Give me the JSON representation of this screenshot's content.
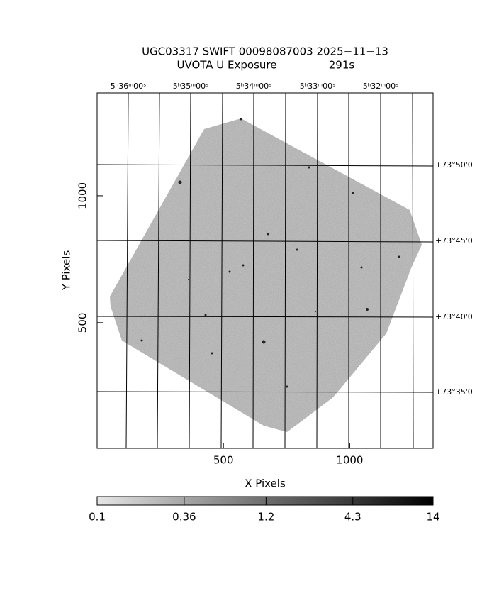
{
  "chart_data": {
    "type": "image",
    "title": "UGC03317 SWIFT 00098087003 2025−11−13",
    "subtitle": "UVOTA U Exposure",
    "exposure": "291s",
    "xlabel": "X Pixels",
    "ylabel": "Y Pixels",
    "xlim": [
      0,
      1330
    ],
    "xticks": [
      500,
      1000
    ],
    "ylim": [
      5,
      1405
    ],
    "yticks": [
      500,
      1000
    ],
    "ra_labels": [
      "5ʰ36ᵐ00ˢ",
      "5ʰ35ᵐ00ˢ",
      "5ʰ34ᵐ00ˢ",
      "5ʰ33ᵐ00ˢ",
      "5ʰ32ᵐ00ˢ"
    ],
    "dec_labels": [
      "+73°50'0",
      "+73°45'0",
      "+73°40'0",
      "+73°35'0"
    ],
    "colorbar": {
      "scale": "log",
      "lim": [
        0.1,
        14
      ],
      "ticks": [
        0.1,
        0.36,
        1.2,
        4.3,
        14
      ]
    }
  }
}
